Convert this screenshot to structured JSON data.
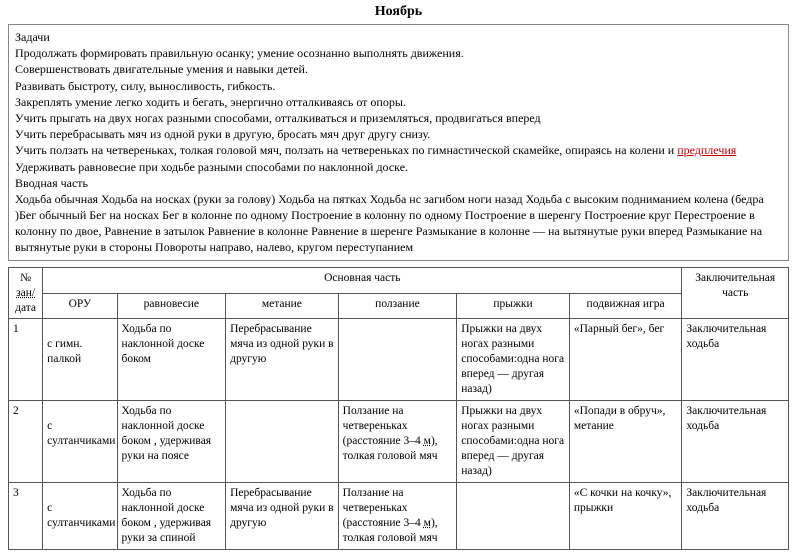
{
  "colors": {
    "text": "#000000",
    "background": "#ffffff",
    "border": "#555555",
    "red_underline": "#c00000"
  },
  "title": "Ноябрь",
  "tasks": {
    "heading": "Задачи",
    "lines": [
      "Продолжать формировать правильную осанку; умение осознанно выполнять движения.",
      "Совершенствовать двигательные умения и навыки детей.",
      "Развивать быстроту, силу, выносливость, гибкость.",
      "Закреплять умение легко ходить и бегать, энергично отталкиваясь от опоры.",
      "Учить прыгать на двух ногах разными способами, отталкиваться и приземляться, продвигаться вперед",
      "Учить перебрасывать мяч из одной руки в другую, бросать  мяч друг другу снизу.",
      "Учить ползать на четвереньках, толкая головой мяч, ползать на четвереньках по гимнастической скамейке, опираясь на колени и ",
      "Удерживать равновесие при ходьбе разными способами по наклонной доске."
    ],
    "line7_underlined_tail": "предплечия",
    "intro_heading": "Вводная часть",
    "intro_text": "Ходьба обычная Ходьба на носках (руки за голову) Ходьба на пятках  Ходьба нс загибом ноги назад Ходьба с высоким подниманием колена (бедра )Бег обычный Бег на носках Бег в колонне по одному Построение в колонну по одному Построение в шеренгу Построение круг Перестроение в колонну по двое, Равнение в затылок Равнение в колонне  Равнение в шеренге Размыкание в колонне — на вытянутые руки вперед  Размыкание на вытянутые руки в стороны Повороты направо, налево, кругом переступанием"
  },
  "table": {
    "col_num_header_1": "№",
    "col_num_header_2": "зан/",
    "col_num_header_3": "дата",
    "main_header": "Основная часть",
    "closing_header": "Заключительная часть",
    "subheaders": {
      "oru": "ОРУ",
      "rav": "равновесие",
      "met": "метание",
      "pol": "ползание",
      "pry": "прыжки",
      "igra": "подвижная игра"
    },
    "rows": [
      {
        "num": "1",
        "oru": "с гимн. палкой",
        "rav": "Ходьба по наклонной доске боком",
        "met": "Перебрасывание мяча из одной руки в другую",
        "pol": "",
        "pry": "Прыжки на двух ногах разными способами:одна нога вперед — другая назад)",
        "igra": "«Парный бег», бег",
        "zakl": "Заключительная ходьба"
      },
      {
        "num": "2",
        "oru": "с султанчиками",
        "rav": "Ходьба по наклонной доске боком , удерживая руки на поясе",
        "met": "",
        "pol_pre": "Ползание на четвереньках (расстояние 3–4 ",
        "pol_unit": "м",
        "pol_post": "), толкая головой мяч",
        "pry": "Прыжки на двух ногах разными способами:одна нога вперед — другая назад)",
        "igra": "«Попади в обруч», метание",
        "zakl": "Заключительная ходьба"
      },
      {
        "num": "3",
        "oru": "с султанчиками",
        "rav": "Ходьба по наклонной доске боком , удерживая руки за спиной",
        "met": "Перебрасывание мяча из одной руки в другую",
        "pol_pre": "Ползание на четвереньках (расстояние 3–4 ",
        "pol_unit": "м",
        "pol_post": "), толкая головой мяч",
        "pry": "",
        "igra": "«С кочки на кочку», прыжки",
        "zakl": "Заключительная ходьба"
      }
    ]
  }
}
